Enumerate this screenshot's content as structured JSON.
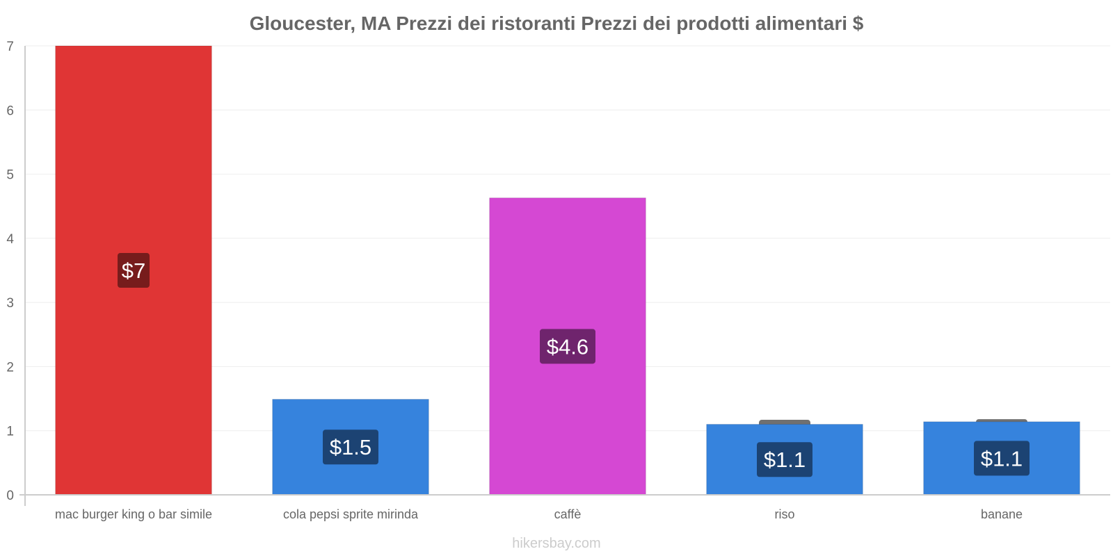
{
  "chart_data": {
    "type": "bar",
    "title": "Gloucester, MA Prezzi dei ristoranti Prezzi dei prodotti alimentari $",
    "categories": [
      "mac burger king o bar simile",
      "cola pepsi sprite mirinda",
      "caffè",
      "riso",
      "banane"
    ],
    "values": [
      7.0,
      1.49,
      4.63,
      1.1,
      1.14
    ],
    "data_labels": [
      "$7",
      "$1.5",
      "$4.6",
      "$1.1",
      "$1.1"
    ],
    "range_caps": [
      null,
      null,
      null,
      1.17,
      1.18
    ],
    "colors": [
      "#e03535",
      "#3683dd",
      "#d548d3",
      "#3683dd",
      "#3683dd"
    ],
    "label_colors": [
      "#771c1c",
      "#1c4373",
      "#6f246d",
      "#1c4373",
      "#1c4373"
    ],
    "range_cap_color": "#707070",
    "yticks": [
      0,
      1,
      2,
      3,
      4,
      5,
      6,
      7
    ],
    "ylim": [
      0,
      7
    ],
    "xlabel": "",
    "ylabel": "",
    "grid": true
  },
  "watermark": "hikersbay.com"
}
